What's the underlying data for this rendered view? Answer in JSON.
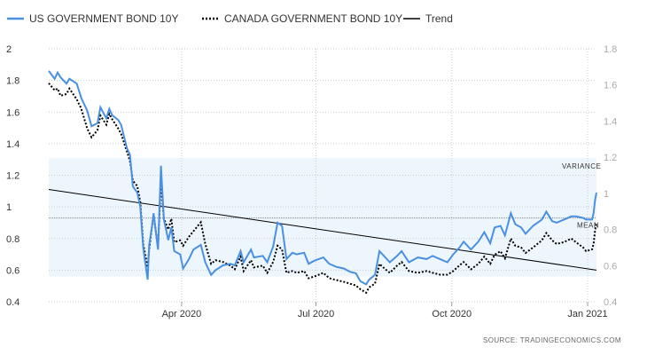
{
  "colors": {
    "us_series": "#4a90e2",
    "canada_series": "#000000",
    "trend": "#000000",
    "variance_band": "#eef6fd",
    "grid": "#cccccc",
    "mean_line": "#888888"
  },
  "legend": {
    "us_label": "US GOVERNMENT BOND 10Y",
    "canada_label": "CANADA GOVERNMENT BOND 10Y",
    "trend_label": "Trend"
  },
  "annotations": {
    "variance": "VARIANCE",
    "mean": "MEAN"
  },
  "source": "SOURCE:  TRADINGECONOMICS.COM",
  "chart_data": {
    "type": "line",
    "grid": true,
    "legend_position": "top-left",
    "x_date_range": [
      "2020-01-02",
      "2021-01-07"
    ],
    "x_ticks": [
      {
        "date": "2020-04-01",
        "label": "Apr 2020"
      },
      {
        "date": "2020-07-01",
        "label": "Jul 2020"
      },
      {
        "date": "2020-10-01",
        "label": "Oct 2020"
      },
      {
        "date": "2021-01-01",
        "label": "Jan 2021"
      }
    ],
    "y_left": {
      "series": "US GOVERNMENT BOND 10Y",
      "range": [
        0.4,
        2.0
      ],
      "ticks": [
        "0.4",
        "0.6",
        "0.8",
        "1",
        "1.2",
        "1.4",
        "1.6",
        "1.8",
        "2"
      ]
    },
    "y_right": {
      "series": "CANADA GOVERNMENT BOND 10Y",
      "range": [
        0.4,
        1.8
      ],
      "ticks": [
        "0.4",
        "0.6",
        "0.8",
        "1",
        "1.2",
        "1.4",
        "1.6",
        "1.8"
      ]
    },
    "mean_us": 0.93,
    "variance_band_us": [
      0.56,
      1.31
    ],
    "trend_us": {
      "start": [
        "2020-01-02",
        1.11
      ],
      "end": [
        "2021-01-07",
        0.6
      ]
    },
    "series": [
      {
        "name": "US GOVERNMENT BOND 10Y",
        "axis": "left",
        "style": "solid",
        "points": [
          [
            "2020-01-02",
            1.86
          ],
          [
            "2020-01-06",
            1.81
          ],
          [
            "2020-01-08",
            1.85
          ],
          [
            "2020-01-10",
            1.82
          ],
          [
            "2020-01-14",
            1.78
          ],
          [
            "2020-01-16",
            1.81
          ],
          [
            "2020-01-21",
            1.78
          ],
          [
            "2020-01-24",
            1.69
          ],
          [
            "2020-01-28",
            1.61
          ],
          [
            "2020-01-31",
            1.51
          ],
          [
            "2020-02-04",
            1.53
          ],
          [
            "2020-02-06",
            1.63
          ],
          [
            "2020-02-10",
            1.56
          ],
          [
            "2020-02-12",
            1.62
          ],
          [
            "2020-02-14",
            1.58
          ],
          [
            "2020-02-18",
            1.55
          ],
          [
            "2020-02-20",
            1.52
          ],
          [
            "2020-02-24",
            1.37
          ],
          [
            "2020-02-26",
            1.33
          ],
          [
            "2020-02-28",
            1.13
          ],
          [
            "2020-03-02",
            1.09
          ],
          [
            "2020-03-04",
            1.0
          ],
          [
            "2020-03-06",
            0.74
          ],
          [
            "2020-03-09",
            0.54
          ],
          [
            "2020-03-10",
            0.76
          ],
          [
            "2020-03-12",
            0.88
          ],
          [
            "2020-03-13",
            0.96
          ],
          [
            "2020-03-16",
            0.73
          ],
          [
            "2020-03-18",
            1.26
          ],
          [
            "2020-03-20",
            0.92
          ],
          [
            "2020-03-23",
            0.79
          ],
          [
            "2020-03-25",
            0.87
          ],
          [
            "2020-03-27",
            0.72
          ],
          [
            "2020-03-31",
            0.7
          ],
          [
            "2020-04-02",
            0.61
          ],
          [
            "2020-04-06",
            0.67
          ],
          [
            "2020-04-09",
            0.73
          ],
          [
            "2020-04-14",
            0.76
          ],
          [
            "2020-04-17",
            0.65
          ],
          [
            "2020-04-21",
            0.57
          ],
          [
            "2020-04-24",
            0.6
          ],
          [
            "2020-04-29",
            0.63
          ],
          [
            "2020-05-04",
            0.64
          ],
          [
            "2020-05-07",
            0.63
          ],
          [
            "2020-05-11",
            0.72
          ],
          [
            "2020-05-13",
            0.65
          ],
          [
            "2020-05-18",
            0.73
          ],
          [
            "2020-05-20",
            0.68
          ],
          [
            "2020-05-26",
            0.69
          ],
          [
            "2020-05-29",
            0.65
          ],
          [
            "2020-06-02",
            0.75
          ],
          [
            "2020-06-05",
            0.9
          ],
          [
            "2020-06-08",
            0.88
          ],
          [
            "2020-06-11",
            0.67
          ],
          [
            "2020-06-15",
            0.71
          ],
          [
            "2020-06-18",
            0.7
          ],
          [
            "2020-06-23",
            0.71
          ],
          [
            "2020-06-26",
            0.64
          ],
          [
            "2020-06-30",
            0.66
          ],
          [
            "2020-07-06",
            0.68
          ],
          [
            "2020-07-10",
            0.64
          ],
          [
            "2020-07-15",
            0.62
          ],
          [
            "2020-07-20",
            0.61
          ],
          [
            "2020-07-24",
            0.59
          ],
          [
            "2020-07-28",
            0.58
          ],
          [
            "2020-07-31",
            0.53
          ],
          [
            "2020-08-04",
            0.51
          ],
          [
            "2020-08-06",
            0.54
          ],
          [
            "2020-08-10",
            0.57
          ],
          [
            "2020-08-13",
            0.72
          ],
          [
            "2020-08-17",
            0.68
          ],
          [
            "2020-08-20",
            0.65
          ],
          [
            "2020-08-25",
            0.69
          ],
          [
            "2020-08-28",
            0.72
          ],
          [
            "2020-09-02",
            0.65
          ],
          [
            "2020-09-08",
            0.68
          ],
          [
            "2020-09-14",
            0.67
          ],
          [
            "2020-09-18",
            0.69
          ],
          [
            "2020-09-23",
            0.67
          ],
          [
            "2020-09-28",
            0.65
          ],
          [
            "2020-10-02",
            0.7
          ],
          [
            "2020-10-06",
            0.74
          ],
          [
            "2020-10-09",
            0.78
          ],
          [
            "2020-10-14",
            0.73
          ],
          [
            "2020-10-19",
            0.78
          ],
          [
            "2020-10-23",
            0.84
          ],
          [
            "2020-10-27",
            0.77
          ],
          [
            "2020-10-30",
            0.87
          ],
          [
            "2020-11-03",
            0.88
          ],
          [
            "2020-11-06",
            0.82
          ],
          [
            "2020-11-10",
            0.96
          ],
          [
            "2020-11-13",
            0.89
          ],
          [
            "2020-11-17",
            0.87
          ],
          [
            "2020-11-20",
            0.83
          ],
          [
            "2020-11-25",
            0.88
          ],
          [
            "2020-12-01",
            0.92
          ],
          [
            "2020-12-04",
            0.97
          ],
          [
            "2020-12-08",
            0.91
          ],
          [
            "2020-12-11",
            0.9
          ],
          [
            "2020-12-16",
            0.92
          ],
          [
            "2020-12-21",
            0.94
          ],
          [
            "2020-12-24",
            0.94
          ],
          [
            "2020-12-29",
            0.93
          ],
          [
            "2020-12-31",
            0.92
          ],
          [
            "2021-01-04",
            0.92
          ],
          [
            "2021-01-05",
            0.96
          ],
          [
            "2021-01-06",
            1.04
          ],
          [
            "2021-01-07",
            1.09
          ]
        ]
      },
      {
        "name": "CANADA GOVERNMENT BOND 10Y",
        "axis": "right",
        "style": "dotted",
        "points": [
          [
            "2020-01-02",
            1.61
          ],
          [
            "2020-01-06",
            1.57
          ],
          [
            "2020-01-08",
            1.58
          ],
          [
            "2020-01-10",
            1.54
          ],
          [
            "2020-01-14",
            1.55
          ],
          [
            "2020-01-16",
            1.58
          ],
          [
            "2020-01-21",
            1.52
          ],
          [
            "2020-01-24",
            1.47
          ],
          [
            "2020-01-28",
            1.36
          ],
          [
            "2020-01-31",
            1.31
          ],
          [
            "2020-02-04",
            1.35
          ],
          [
            "2020-02-06",
            1.43
          ],
          [
            "2020-02-10",
            1.38
          ],
          [
            "2020-02-12",
            1.44
          ],
          [
            "2020-02-14",
            1.41
          ],
          [
            "2020-02-18",
            1.36
          ],
          [
            "2020-02-20",
            1.33
          ],
          [
            "2020-02-24",
            1.23
          ],
          [
            "2020-02-26",
            1.18
          ],
          [
            "2020-02-28",
            1.07
          ],
          [
            "2020-03-02",
            1.04
          ],
          [
            "2020-03-04",
            0.95
          ],
          [
            "2020-03-06",
            0.72
          ],
          [
            "2020-03-09",
            0.59
          ],
          [
            "2020-03-10",
            0.69
          ],
          [
            "2020-03-12",
            0.82
          ],
          [
            "2020-03-13",
            0.88
          ],
          [
            "2020-03-16",
            0.7
          ],
          [
            "2020-03-18",
            1.07
          ],
          [
            "2020-03-20",
            0.86
          ],
          [
            "2020-03-23",
            0.8
          ],
          [
            "2020-03-25",
            0.86
          ],
          [
            "2020-03-27",
            0.73
          ],
          [
            "2020-03-31",
            0.74
          ],
          [
            "2020-04-02",
            0.71
          ],
          [
            "2020-04-06",
            0.76
          ],
          [
            "2020-04-09",
            0.79
          ],
          [
            "2020-04-14",
            0.84
          ],
          [
            "2020-04-17",
            0.72
          ],
          [
            "2020-04-21",
            0.61
          ],
          [
            "2020-04-24",
            0.63
          ],
          [
            "2020-04-29",
            0.62
          ],
          [
            "2020-05-04",
            0.6
          ],
          [
            "2020-05-07",
            0.58
          ],
          [
            "2020-05-11",
            0.65
          ],
          [
            "2020-05-13",
            0.57
          ],
          [
            "2020-05-18",
            0.63
          ],
          [
            "2020-05-20",
            0.59
          ],
          [
            "2020-05-26",
            0.6
          ],
          [
            "2020-05-29",
            0.56
          ],
          [
            "2020-06-02",
            0.62
          ],
          [
            "2020-06-05",
            0.71
          ],
          [
            "2020-06-08",
            0.69
          ],
          [
            "2020-06-11",
            0.56
          ],
          [
            "2020-06-15",
            0.57
          ],
          [
            "2020-06-18",
            0.56
          ],
          [
            "2020-06-23",
            0.57
          ],
          [
            "2020-06-26",
            0.53
          ],
          [
            "2020-06-30",
            0.54
          ],
          [
            "2020-07-06",
            0.56
          ],
          [
            "2020-07-10",
            0.53
          ],
          [
            "2020-07-15",
            0.52
          ],
          [
            "2020-07-20",
            0.51
          ],
          [
            "2020-07-24",
            0.5
          ],
          [
            "2020-07-28",
            0.49
          ],
          [
            "2020-07-31",
            0.47
          ],
          [
            "2020-08-04",
            0.45
          ],
          [
            "2020-08-06",
            0.48
          ],
          [
            "2020-08-10",
            0.5
          ],
          [
            "2020-08-13",
            0.61
          ],
          [
            "2020-08-17",
            0.58
          ],
          [
            "2020-08-20",
            0.56
          ],
          [
            "2020-08-25",
            0.6
          ],
          [
            "2020-08-28",
            0.62
          ],
          [
            "2020-09-02",
            0.57
          ],
          [
            "2020-09-08",
            0.56
          ],
          [
            "2020-09-14",
            0.57
          ],
          [
            "2020-09-18",
            0.56
          ],
          [
            "2020-09-23",
            0.55
          ],
          [
            "2020-09-28",
            0.55
          ],
          [
            "2020-10-02",
            0.57
          ],
          [
            "2020-10-06",
            0.6
          ],
          [
            "2020-10-09",
            0.62
          ],
          [
            "2020-10-14",
            0.58
          ],
          [
            "2020-10-19",
            0.61
          ],
          [
            "2020-10-23",
            0.65
          ],
          [
            "2020-10-27",
            0.61
          ],
          [
            "2020-10-30",
            0.66
          ],
          [
            "2020-11-03",
            0.68
          ],
          [
            "2020-11-06",
            0.64
          ],
          [
            "2020-11-10",
            0.75
          ],
          [
            "2020-11-13",
            0.71
          ],
          [
            "2020-11-17",
            0.7
          ],
          [
            "2020-11-20",
            0.67
          ],
          [
            "2020-11-25",
            0.7
          ],
          [
            "2020-12-01",
            0.74
          ],
          [
            "2020-12-04",
            0.78
          ],
          [
            "2020-12-08",
            0.74
          ],
          [
            "2020-12-11",
            0.72
          ],
          [
            "2020-12-16",
            0.73
          ],
          [
            "2020-12-21",
            0.75
          ],
          [
            "2020-12-24",
            0.73
          ],
          [
            "2020-12-29",
            0.7
          ],
          [
            "2020-12-31",
            0.68
          ],
          [
            "2021-01-04",
            0.69
          ],
          [
            "2021-01-05",
            0.72
          ],
          [
            "2021-01-06",
            0.79
          ],
          [
            "2021-01-07",
            0.84
          ]
        ]
      }
    ]
  }
}
